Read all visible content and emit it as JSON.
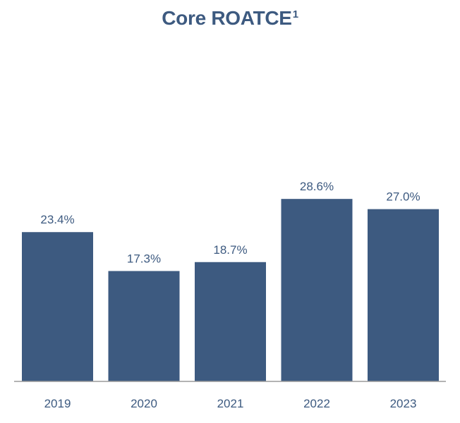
{
  "chart_data": {
    "type": "bar",
    "title": "Core ROATCE",
    "title_footnote": "1",
    "categories": [
      "2019",
      "2020",
      "2021",
      "2022",
      "2023"
    ],
    "values": [
      23.4,
      17.3,
      18.7,
      28.6,
      27.0
    ],
    "value_labels": [
      "23.4%",
      "17.3%",
      "18.7%",
      "28.6%",
      "27.0%"
    ],
    "unit": "%",
    "xlabel": "",
    "ylabel": "",
    "ylim": [
      0,
      32
    ],
    "grid": false,
    "legend": "none",
    "bar_color": "#3d5a80"
  }
}
